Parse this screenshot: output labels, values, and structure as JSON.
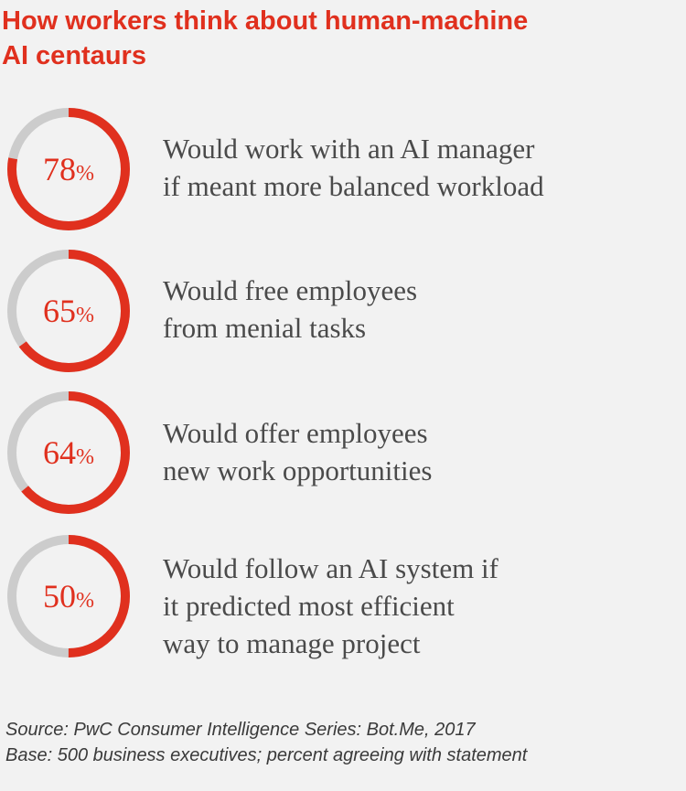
{
  "title_lines": [
    "How workers think about human-machine",
    "AI centaurs"
  ],
  "colors": {
    "accent": "#e0301e",
    "track": "#cccccc",
    "text": "#4a4a4a",
    "background": "#f2f2f2"
  },
  "chart_data": {
    "type": "donut",
    "title": "How workers think about human-machine AI centaurs",
    "items": [
      {
        "value": 78,
        "value_label": "78",
        "unit": "%",
        "lines": [
          "Would work with an AI manager",
          "if meant more balanced workload"
        ]
      },
      {
        "value": 65,
        "value_label": "65",
        "unit": "%",
        "lines": [
          "Would free employees",
          "from menial tasks"
        ]
      },
      {
        "value": 64,
        "value_label": "64",
        "unit": "%",
        "lines": [
          "Would offer employees",
          "new work opportunities"
        ]
      },
      {
        "value": 50,
        "value_label": "50",
        "unit": "%",
        "lines": [
          "Would follow an AI system if",
          "it predicted most efficient",
          "way to manage project"
        ]
      }
    ]
  },
  "footer": {
    "source": "Source: PwC Consumer Intelligence Series: Bot.Me, 2017",
    "base": "Base: 500 business executives; percent agreeing with statement"
  }
}
